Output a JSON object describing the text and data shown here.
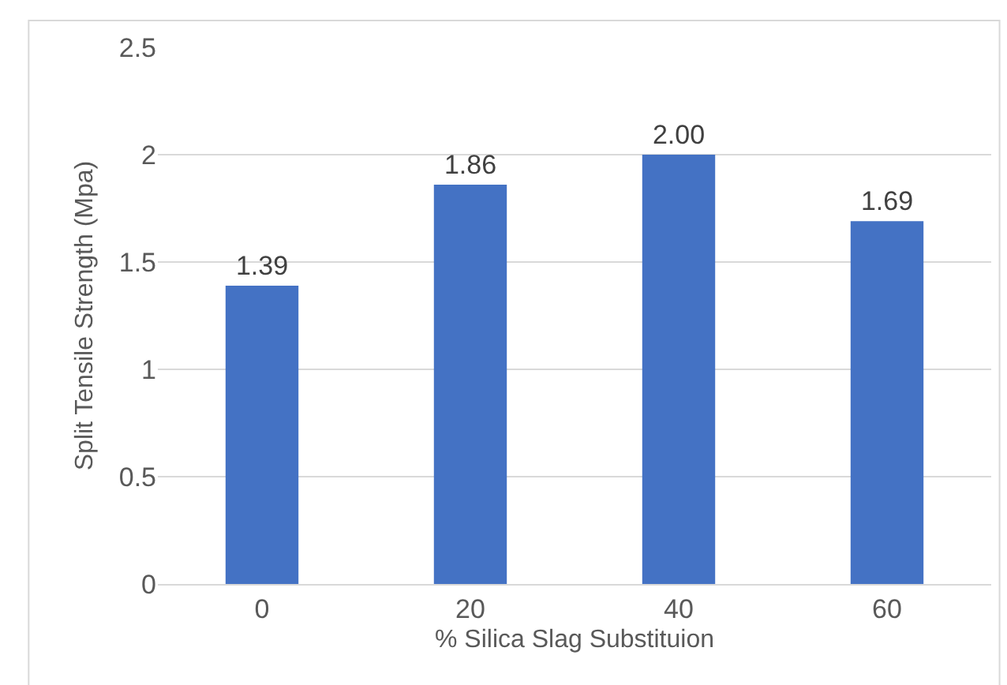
{
  "chart_data": {
    "type": "bar",
    "xlabel": "% Silica Slag Substituion",
    "ylabel": "Split Tensile Strength (Mpa)",
    "categories": [
      "0",
      "20",
      "40",
      "60"
    ],
    "values": [
      1.39,
      1.86,
      2.0,
      1.69
    ],
    "value_labels": [
      "1.39",
      "1.86",
      "2.00",
      "1.69"
    ],
    "color": "#4472c4",
    "ylim": [
      0,
      2.5
    ],
    "yticks": [
      0,
      {
        "value": 0.5,
        "label": "0.5"
      },
      1,
      {
        "value": 1.5,
        "label": "1.5"
      },
      2,
      {
        "value": 2.5,
        "label": "2.5"
      }
    ],
    "grid": "y"
  }
}
